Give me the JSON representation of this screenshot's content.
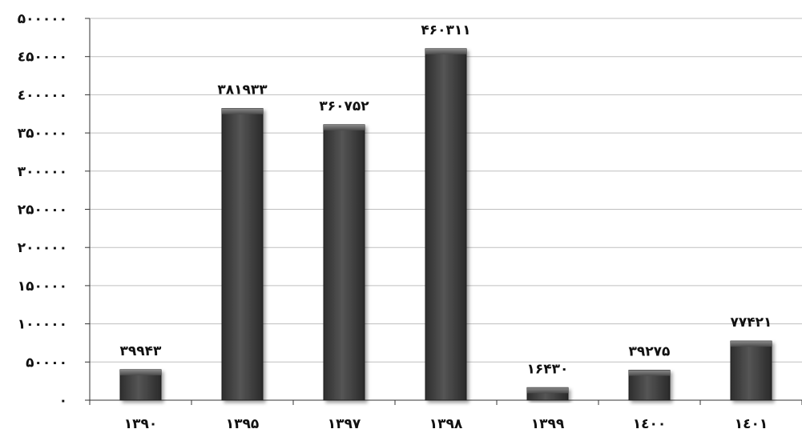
{
  "chart_data": {
    "type": "bar",
    "title": "",
    "xlabel": "",
    "ylabel": "",
    "categories": [
      "۱۳۹۰",
      "۱۳۹۵",
      "۱۳۹۷",
      "۱۳۹۸",
      "۱۳۹۹",
      "۱٤۰۰",
      "۱٤۰۱"
    ],
    "values": [
      39943,
      381933,
      360752,
      460311,
      16430,
      39275,
      77421
    ],
    "value_labels": [
      "۳۹۹۴۳",
      "۳۸۱۹۳۳",
      "۳۶۰۷۵۲",
      "۴۶۰۳۱۱",
      "۱۶۴۳۰",
      "۳۹۲۷۵",
      "۷۷۴۲۱"
    ],
    "ylim": [
      0,
      500000
    ],
    "yticks": [
      0,
      50000,
      100000,
      150000,
      200000,
      250000,
      300000,
      350000,
      400000,
      450000,
      500000
    ],
    "ytick_labels": [
      "۰",
      "۵۰۰۰۰",
      "۱۰۰۰۰۰",
      "۱۵۰۰۰۰",
      "۲۰۰۰۰۰",
      "۲۵۰۰۰۰",
      "۳۰۰۰۰۰",
      "۳۵۰۰۰۰",
      "٤۰۰۰۰۰",
      "٤۵۰۰۰۰",
      "۵۰۰۰۰۰"
    ],
    "grid": true,
    "legend": "none",
    "bar_color": "#444444",
    "grid_color": "#bfbfbf"
  }
}
